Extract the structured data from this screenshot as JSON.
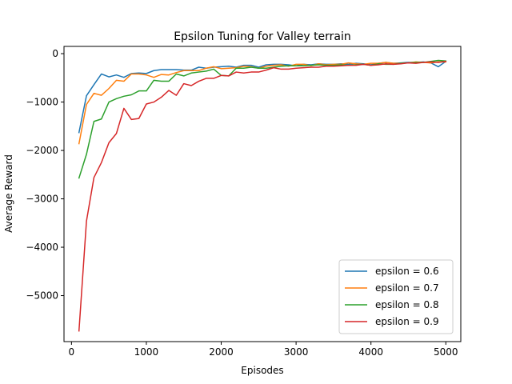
{
  "chart_data": {
    "type": "line",
    "title": "Epsilon Tuning for Valley terrain",
    "xlabel": "Episodes",
    "ylabel": "Average Reward",
    "xlim": [
      -100,
      5200
    ],
    "ylim": [
      -5950,
      150
    ],
    "xticks": [
      0,
      1000,
      2000,
      3000,
      4000,
      5000
    ],
    "yticks": [
      0,
      -1000,
      -2000,
      -3000,
      -4000,
      -5000
    ],
    "grid": false,
    "legend_position": "lower-right",
    "x": [
      100,
      200,
      300,
      400,
      500,
      600,
      700,
      800,
      900,
      1000,
      1100,
      1200,
      1300,
      1400,
      1500,
      1600,
      1700,
      1800,
      1900,
      2000,
      2100,
      2200,
      2300,
      2400,
      2500,
      2600,
      2700,
      2800,
      2900,
      3000,
      3100,
      3200,
      3300,
      3400,
      3500,
      3600,
      3700,
      3800,
      3900,
      4000,
      4100,
      4200,
      4300,
      4400,
      4500,
      4600,
      4700,
      4800,
      4900,
      5000
    ],
    "series": [
      {
        "name": "epsilon = 0.6",
        "color": "#1f77b4",
        "values": [
          -1630,
          -870,
          -640,
          -420,
          -480,
          -440,
          -490,
          -410,
          -400,
          -410,
          -350,
          -330,
          -330,
          -330,
          -340,
          -340,
          -280,
          -300,
          -280,
          -270,
          -260,
          -280,
          -240,
          -240,
          -280,
          -230,
          -220,
          -220,
          -230,
          -250,
          -220,
          -230,
          -210,
          -220,
          -220,
          -210,
          -220,
          -200,
          -210,
          -230,
          -200,
          -180,
          -200,
          -190,
          -180,
          -180,
          -170,
          -190,
          -270,
          -160
        ]
      },
      {
        "name": "epsilon = 0.7",
        "color": "#ff7f0e",
        "values": [
          -1860,
          -1050,
          -820,
          -860,
          -720,
          -550,
          -570,
          -420,
          -420,
          -440,
          -490,
          -430,
          -440,
          -390,
          -350,
          -350,
          -350,
          -300,
          -270,
          -310,
          -300,
          -290,
          -260,
          -270,
          -300,
          -260,
          -240,
          -230,
          -260,
          -220,
          -220,
          -250,
          -210,
          -230,
          -220,
          -220,
          -190,
          -210,
          -220,
          -200,
          -200,
          -180,
          -200,
          -200,
          -190,
          -170,
          -180,
          -190,
          -170,
          -170
        ]
      },
      {
        "name": "epsilon = 0.8",
        "color": "#2ca02c",
        "values": [
          -2570,
          -2080,
          -1400,
          -1350,
          -1000,
          -930,
          -880,
          -850,
          -770,
          -770,
          -550,
          -570,
          -570,
          -420,
          -460,
          -400,
          -380,
          -360,
          -320,
          -450,
          -460,
          -300,
          -300,
          -280,
          -300,
          -300,
          -280,
          -260,
          -250,
          -250,
          -250,
          -240,
          -230,
          -240,
          -240,
          -230,
          -240,
          -230,
          -220,
          -240,
          -210,
          -220,
          -220,
          -200,
          -190,
          -180,
          -180,
          -160,
          -140,
          -150
        ]
      },
      {
        "name": "epsilon = 0.9",
        "color": "#d62728",
        "values": [
          -5730,
          -3460,
          -2560,
          -2250,
          -1840,
          -1650,
          -1130,
          -1360,
          -1340,
          -1040,
          -1000,
          -900,
          -760,
          -860,
          -620,
          -660,
          -570,
          -510,
          -510,
          -450,
          -460,
          -380,
          -400,
          -380,
          -380,
          -340,
          -290,
          -320,
          -320,
          -300,
          -290,
          -280,
          -280,
          -260,
          -260,
          -250,
          -240,
          -240,
          -220,
          -240,
          -230,
          -210,
          -220,
          -210,
          -190,
          -200,
          -180,
          -170,
          -180,
          -160
        ]
      }
    ]
  }
}
